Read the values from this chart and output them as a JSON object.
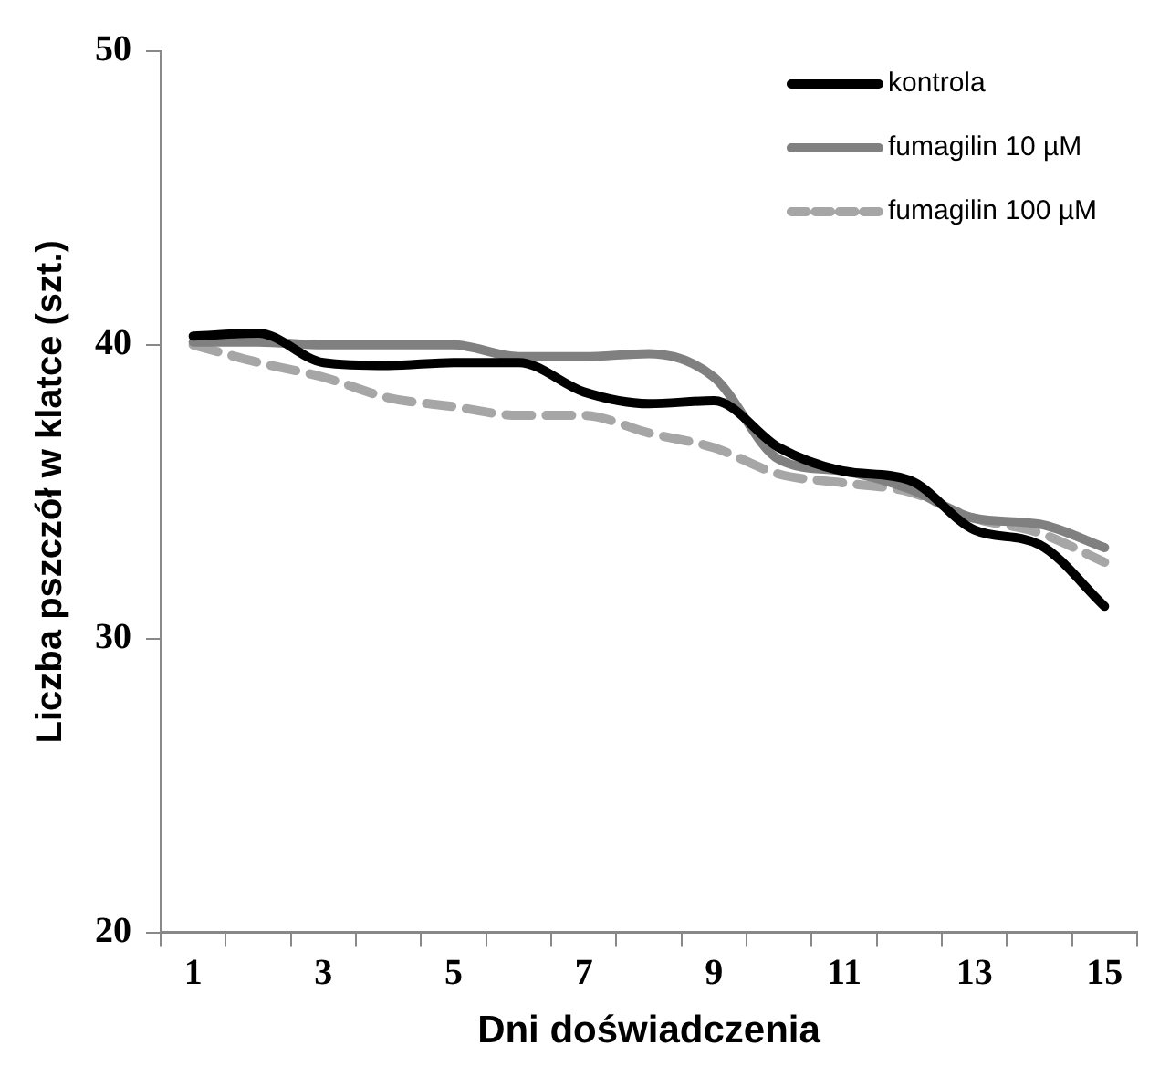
{
  "chart_data": {
    "type": "line",
    "xlabel": "Dni doświadczenia",
    "ylabel": "Liczba pszczół w klatce (szt.)",
    "x": [
      1,
      2,
      3,
      4,
      5,
      6,
      7,
      8,
      9,
      10,
      11,
      12,
      13,
      14,
      15
    ],
    "xlim": [
      0.5,
      15.5
    ],
    "xticks": [
      {
        "value": 0.5,
        "label": null
      },
      1,
      {
        "value": 1.5,
        "label": null
      },
      {
        "value": 2.5,
        "label": null
      },
      3,
      {
        "value": 3.5,
        "label": null
      },
      {
        "value": 4.5,
        "label": null
      },
      5,
      {
        "value": 5.5,
        "label": null
      },
      {
        "value": 6.5,
        "label": null
      },
      7,
      {
        "value": 7.5,
        "label": null
      },
      {
        "value": 8.5,
        "label": null
      },
      9,
      {
        "value": 9.5,
        "label": null
      },
      {
        "value": 10.5,
        "label": null
      },
      11,
      {
        "value": 11.5,
        "label": null
      },
      {
        "value": 12.5,
        "label": null
      },
      13,
      {
        "value": 13.5,
        "label": null
      },
      {
        "value": 14.5,
        "label": null
      },
      15,
      {
        "value": 15.5,
        "label": null
      }
    ],
    "series": [
      {
        "name": "kontrola",
        "color": "#000000",
        "line_style": "solid",
        "values": [
          40.3,
          40.4,
          39.4,
          39.3,
          39.4,
          39.4,
          38.4,
          38.0,
          38.1,
          36.5,
          35.7,
          35.4,
          33.7,
          33.2,
          31.1
        ]
      },
      {
        "name": "fumagilin 10 µM",
        "color": "#808080",
        "line_style": "solid",
        "values": [
          40.1,
          40.1,
          40.0,
          40.0,
          40.0,
          39.6,
          39.6,
          39.7,
          38.9,
          36.1,
          35.7,
          35.1,
          34.1,
          33.9,
          33.1
        ]
      },
      {
        "name": "fumagilin 100 µM",
        "color": "#a6a6a6",
        "line_style": "dashed",
        "values": [
          40.0,
          39.4,
          38.9,
          38.2,
          37.9,
          37.6,
          37.6,
          37.0,
          36.5,
          35.6,
          35.3,
          35.0,
          34.1,
          33.6,
          32.6
        ]
      }
    ],
    "ylim": [
      20,
      50
    ],
    "yticks": [
      20,
      30,
      40,
      50
    ],
    "grid": false,
    "legend": "top right",
    "marker": "none"
  }
}
